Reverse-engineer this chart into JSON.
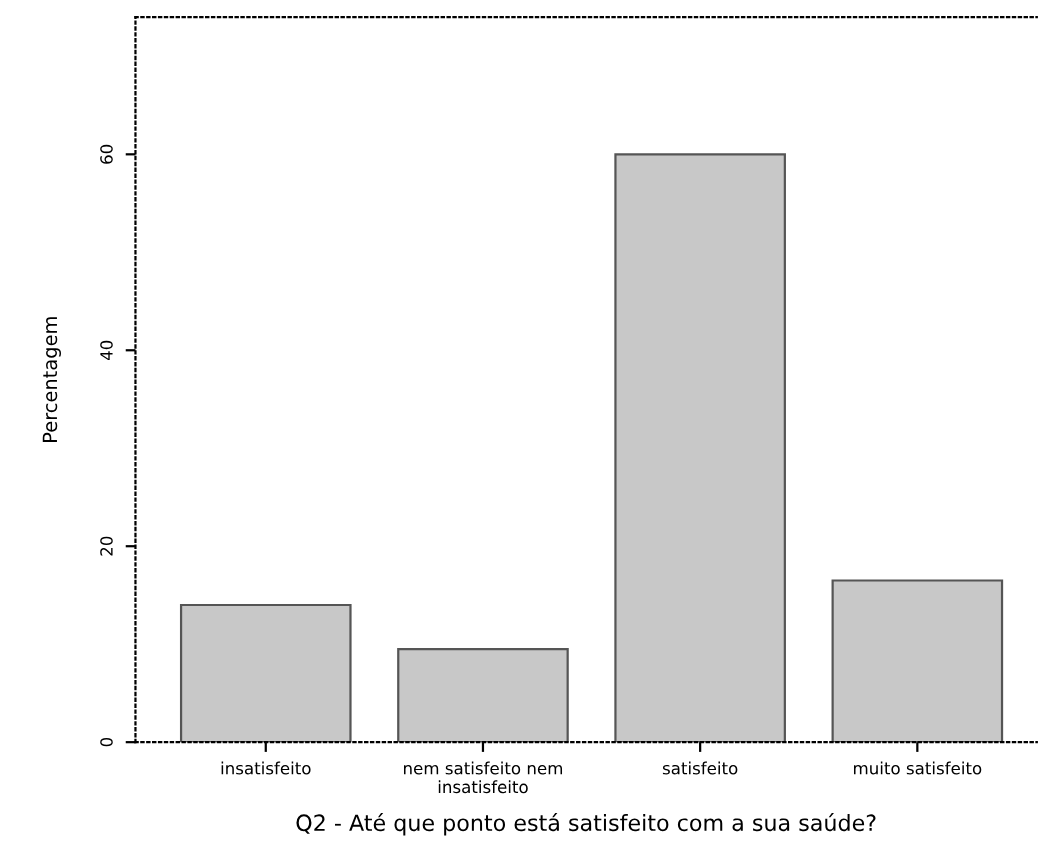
{
  "chart_data": {
    "type": "bar",
    "xlabel": "Q2 - Até que ponto está satisfeito com a sua saúde?",
    "ylabel": "Percentagem",
    "categories": [
      "insatisfeito",
      "nem satisfeito nem insatisfeito",
      "satisfeito",
      "muito satisfeito"
    ],
    "values": [
      14,
      9.5,
      60,
      16.5
    ],
    "color": "#c8c8c8",
    "ylim": [
      0,
      74
    ],
    "yticks": [
      0,
      20,
      40,
      60
    ],
    "grid": false
  }
}
